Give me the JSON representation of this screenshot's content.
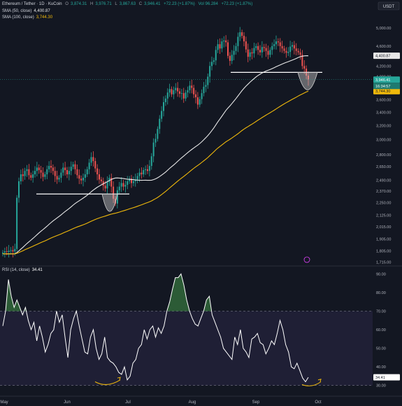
{
  "header": {
    "symbol": "Ethereum / Tether · 1D · KuCoin",
    "ohlc": [
      {
        "key": "O",
        "value": "3,874.31"
      },
      {
        "key": "H",
        "value": "3,976.71"
      },
      {
        "key": "L",
        "value": "3,867.63"
      },
      {
        "key": "C",
        "value": "3,946.41"
      }
    ],
    "change": "+72.23 (+1.87%)",
    "vol": "Vol 96.284",
    "vol_change": "+72.23 (+1.87%)",
    "currency": "USDT"
  },
  "indicators": {
    "sma50": {
      "label": "SMA (50, close)",
      "value": "4,400.87"
    },
    "sma100": {
      "label": "SMA (100, close)",
      "value": "3,744.30"
    },
    "rsi": {
      "label": "RSI (14, close)",
      "value": "34.41"
    }
  },
  "price_badges": {
    "sma50": "4,400.87",
    "last": "3,946.41",
    "countdown": "16:34:57",
    "sma100": "3,744.30"
  },
  "colors": {
    "background": "#131722",
    "up": "#26a69a",
    "down": "#ef5350",
    "sma50": "#e8e8e8",
    "sma100": "#f0b90b",
    "rsi": "#ffffff",
    "accent": "#2962ff"
  },
  "chart_data": [
    {
      "type": "candlestick",
      "title": "Ethereum / Tether · 1D · KuCoin",
      "x": [
        "May",
        "Jun",
        "Jul",
        "Aug",
        "Sep",
        "Oct"
      ],
      "y_scale": "log",
      "ylim": [
        1700,
        5500
      ],
      "y_ticks": [
        5000,
        4600,
        4200,
        4000,
        3800,
        3600,
        3400,
        3200,
        3000,
        2800,
        2650,
        2490,
        2370,
        2250,
        2125,
        2015,
        1905,
        1805,
        1715
      ],
      "y_tick_labels": [
        "5,000.00",
        "4,600.00",
        "4,200.00",
        "4,000.00",
        "3,800.00",
        "3,600.00",
        "3,400.00",
        "3,200.00",
        "3,000.00",
        "2,800.00",
        "2,650.00",
        "2,490.00",
        "2,370.00",
        "2,250.00",
        "2,125.00",
        "2,015.00",
        "1,905.00",
        "1,805.00",
        "1,715.00"
      ],
      "series": [
        {
          "name": "Ethereum / Tether",
          "date_range": [
            "May 2025",
            "Sep 26 2025"
          ],
          "daily_closes": [
            1790,
            1800,
            1795,
            1805,
            1810,
            1800,
            1820,
            2300,
            2480,
            2560,
            2540,
            2600,
            2620,
            2550,
            2520,
            2560,
            2600,
            2640,
            2610,
            2580,
            2530,
            2560,
            2620,
            2660,
            2640,
            2600,
            2540,
            2500,
            2520,
            2580,
            2640,
            2610,
            2560,
            2600,
            2650,
            2680,
            2620,
            2550,
            2510,
            2490,
            2520,
            2560,
            2620,
            2700,
            2770,
            2720,
            2630,
            2560,
            2500,
            2480,
            2430,
            2400,
            2470,
            2520,
            2420,
            2290,
            2240,
            2380,
            2420,
            2460,
            2420,
            2440,
            2480,
            2510,
            2460,
            2480,
            2500,
            2540,
            2580,
            2560,
            2610,
            2620,
            2600,
            2660,
            2780,
            2960,
            3010,
            3150,
            3300,
            3420,
            3560,
            3620,
            3720,
            3780,
            3690,
            3760,
            3800,
            3740,
            3700,
            3710,
            3620,
            3720,
            3760,
            3840,
            3800,
            3690,
            3640,
            3520,
            3610,
            3710,
            3820,
            3850,
            4000,
            4200,
            4280,
            4310,
            4520,
            4640,
            4550,
            4700,
            4720,
            4680,
            4400,
            4300,
            4420,
            4500,
            4600,
            4800,
            4900,
            4820,
            4700,
            4530,
            4380,
            4470,
            4450,
            4560,
            4600,
            4520,
            4470,
            4580,
            4560,
            4500,
            4420,
            4520,
            4600,
            4640,
            4700,
            4680,
            4600,
            4550,
            4500,
            4460,
            4480,
            4590,
            4620,
            4550,
            4500,
            4470,
            4420,
            4200,
            4150,
            4020,
            3946
          ],
          "last": {
            "open": 3874.31,
            "high": 3976.71,
            "low": 3867.63,
            "close": 3946.41
          }
        },
        {
          "name": "SMA (50, close)",
          "last": 4400.87
        },
        {
          "name": "SMA (100, close)",
          "last": 3744.3
        }
      ],
      "annotations": {
        "horizontal_lines": [
          2340,
          4080
        ],
        "rounded_bottom_highlights": [
          "mid June",
          "late September"
        ]
      }
    },
    {
      "type": "line",
      "title": "RSI (14, close)",
      "ylim": [
        28,
        92
      ],
      "y_ticks": [
        90,
        80,
        70,
        60,
        50,
        40,
        30
      ],
      "y_tick_labels": [
        "90.00",
        "80.00",
        "70.00",
        "60.00",
        "50.00",
        "40.00",
        "30.00"
      ],
      "band": [
        30,
        70
      ],
      "series": [
        {
          "name": "RSI (14, close)",
          "last": 34.41,
          "values": [
            62,
            70,
            87,
            78,
            72,
            76,
            72,
            68,
            72,
            65,
            60,
            64,
            54,
            62,
            56,
            48,
            52,
            58,
            60,
            70,
            64,
            68,
            56,
            45,
            60,
            66,
            70,
            62,
            55,
            48,
            47,
            56,
            60,
            50,
            44,
            47,
            56,
            45,
            43,
            42,
            40,
            37,
            36,
            40,
            33,
            35,
            42,
            44,
            50,
            52,
            60,
            55,
            60,
            62,
            56,
            61,
            58,
            62,
            70,
            75,
            82,
            88,
            88,
            90,
            84,
            76,
            70,
            66,
            63,
            62,
            66,
            70,
            76,
            78,
            68,
            64,
            60,
            56,
            50,
            48,
            46,
            44,
            56,
            52,
            60,
            50,
            48,
            45,
            55,
            56,
            58,
            53,
            52,
            47,
            50,
            54,
            52,
            58,
            65,
            60,
            52,
            48,
            40,
            39,
            42,
            38,
            34,
            32,
            34.41
          ]
        }
      ]
    }
  ],
  "x_axis": {
    "labels": [
      "May",
      "Jun",
      "Jul",
      "Aug",
      "Sep",
      "Oct"
    ]
  }
}
